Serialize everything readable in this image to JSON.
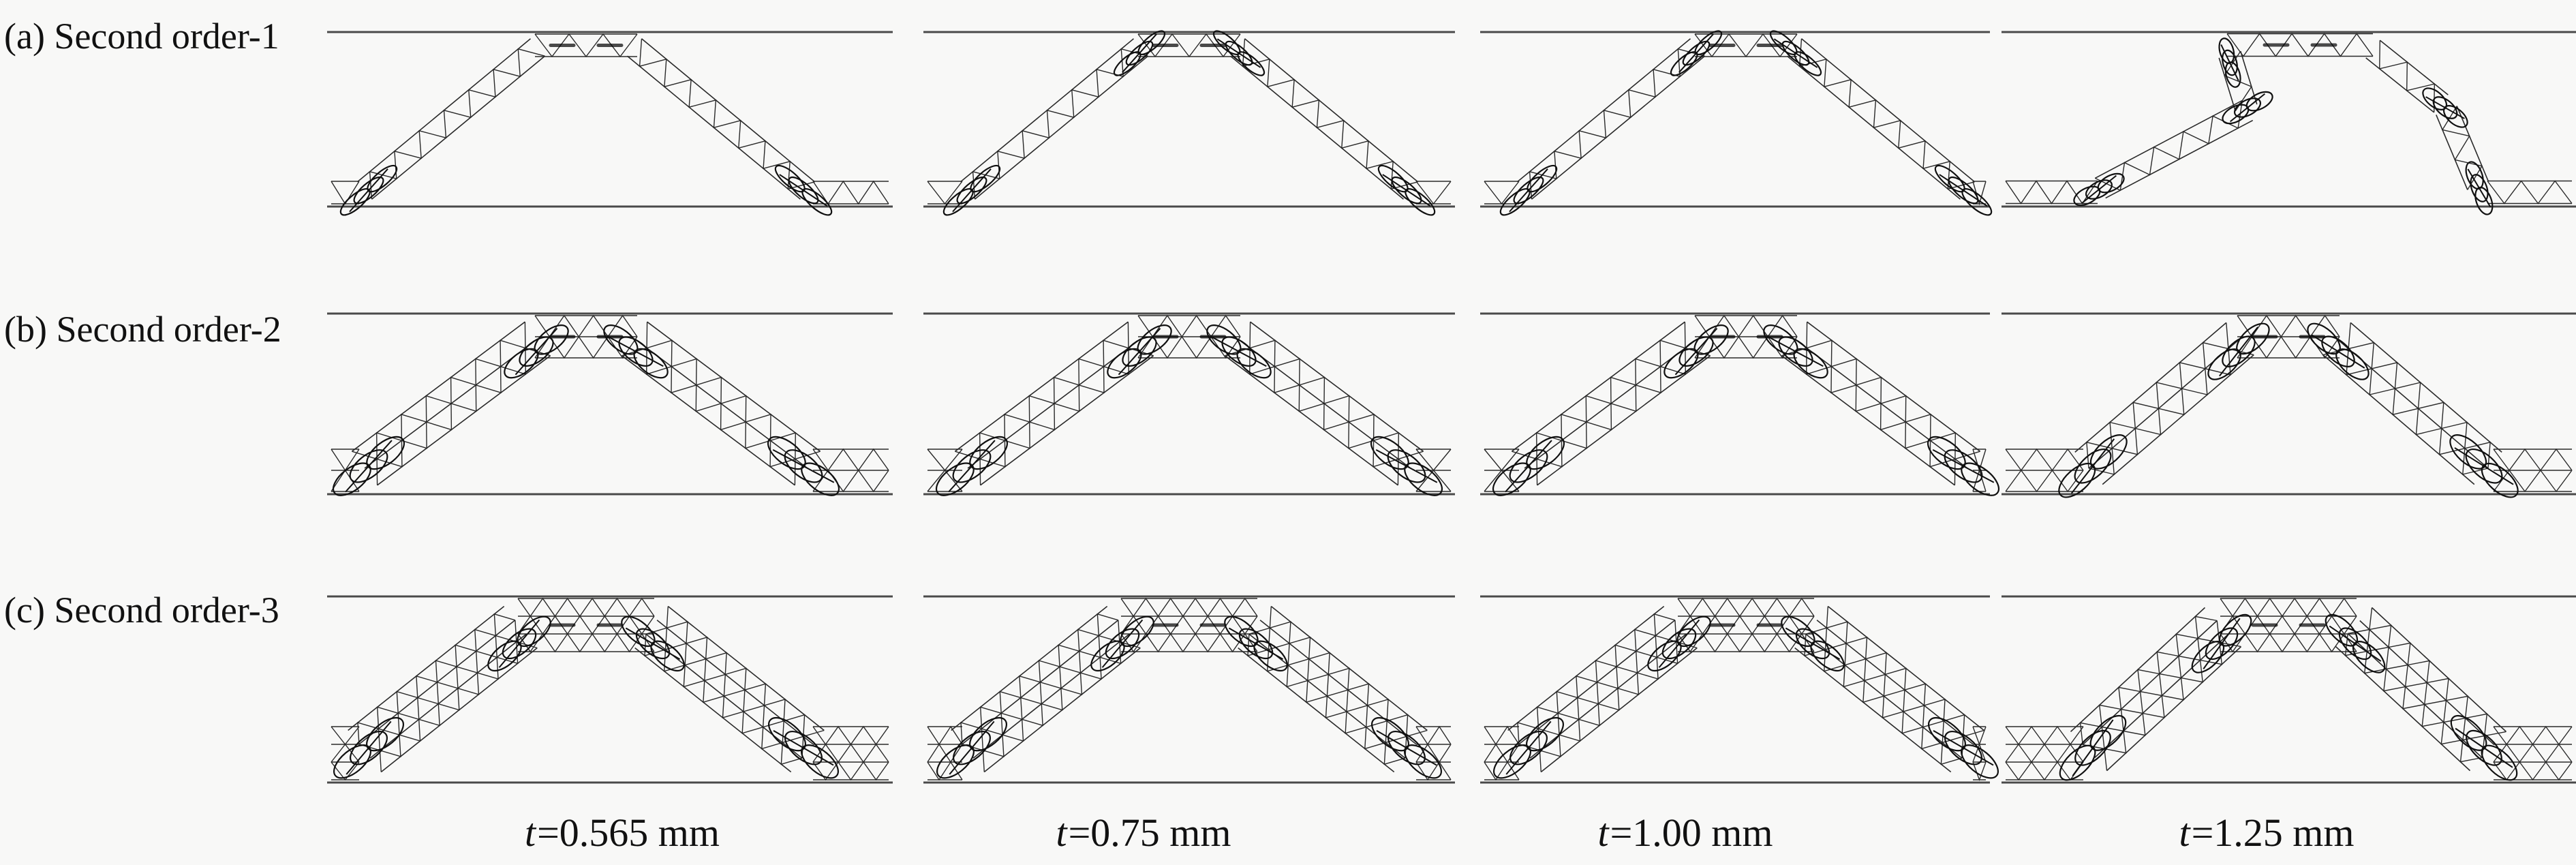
{
  "figure": {
    "background": "#f8f8f7",
    "ink": "#2a2a2a",
    "rule_color": "#4a4a4a",
    "coil_color": "#101010"
  },
  "rows": [
    {
      "id": "a",
      "label": "(a) Second order-1",
      "lattice_layers": 1,
      "panels": [
        "normal",
        "normal",
        "normal",
        "collapsed"
      ]
    },
    {
      "id": "b",
      "label": "(b) Second order-2",
      "lattice_layers": 2,
      "panels": [
        "normal",
        "normal",
        "normal",
        "normal"
      ]
    },
    {
      "id": "c",
      "label": "(c) Second order-3",
      "lattice_layers": 3,
      "panels": [
        "normal",
        "normal",
        "normal",
        "normal"
      ]
    }
  ],
  "captions": [
    {
      "var": "t",
      "rest": "=0.565 mm",
      "value_mm": 0.565
    },
    {
      "var": "t",
      "rest": "=0.75 mm",
      "value_mm": 0.75
    },
    {
      "var": "t",
      "rest": "=1.00 mm",
      "value_mm": 1.0
    },
    {
      "var": "t",
      "rest": "=1.25 mm",
      "value_mm": 1.25
    }
  ]
}
